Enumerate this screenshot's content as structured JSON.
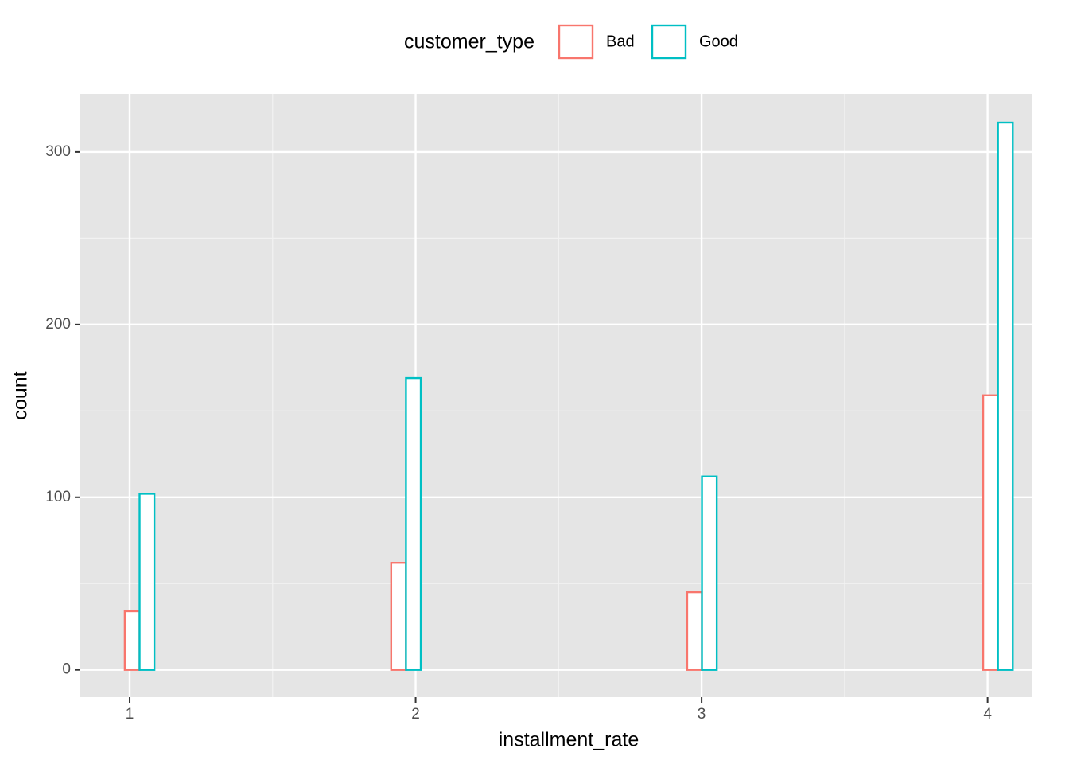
{
  "chart_data": {
    "type": "histogram",
    "x_label": "installment_rate",
    "y_label": "count",
    "legend_title": "customer_type",
    "bins": [
      0.983,
      1.0865,
      1.19,
      1.2935,
      1.397,
      1.5005,
      1.604,
      1.7075,
      1.811,
      1.9145,
      2.018,
      2.1215,
      2.225,
      2.3285,
      2.432,
      2.5355,
      2.639,
      2.7425,
      2.846,
      2.9495,
      3.053,
      3.1565,
      3.26,
      3.3635,
      3.467,
      3.5705,
      3.674,
      3.7775,
      3.881,
      3.9845,
      4.088
    ],
    "series": [
      {
        "name": "Bad",
        "color": "#F8766D",
        "values": [
          34,
          0,
          0,
          0,
          0,
          0,
          0,
          0,
          0,
          62,
          0,
          0,
          0,
          0,
          0,
          0,
          0,
          0,
          0,
          45,
          0,
          0,
          0,
          0,
          0,
          0,
          0,
          0,
          0,
          159
        ]
      },
      {
        "name": "Good",
        "color": "#00BFC4",
        "values": [
          102,
          0,
          0,
          0,
          0,
          0,
          0,
          0,
          0,
          169,
          0,
          0,
          0,
          0,
          0,
          0,
          0,
          0,
          0,
          112,
          0,
          0,
          0,
          0,
          0,
          0,
          0,
          0,
          0,
          317
        ]
      }
    ],
    "xlim": [
      0.8275,
      4.154
    ],
    "xticks": [
      1,
      2,
      3,
      4
    ],
    "ylim": [
      -15.8,
      333.6
    ],
    "yticks": [
      0,
      100,
      200,
      300
    ],
    "grid": true,
    "legend_position": "top"
  }
}
